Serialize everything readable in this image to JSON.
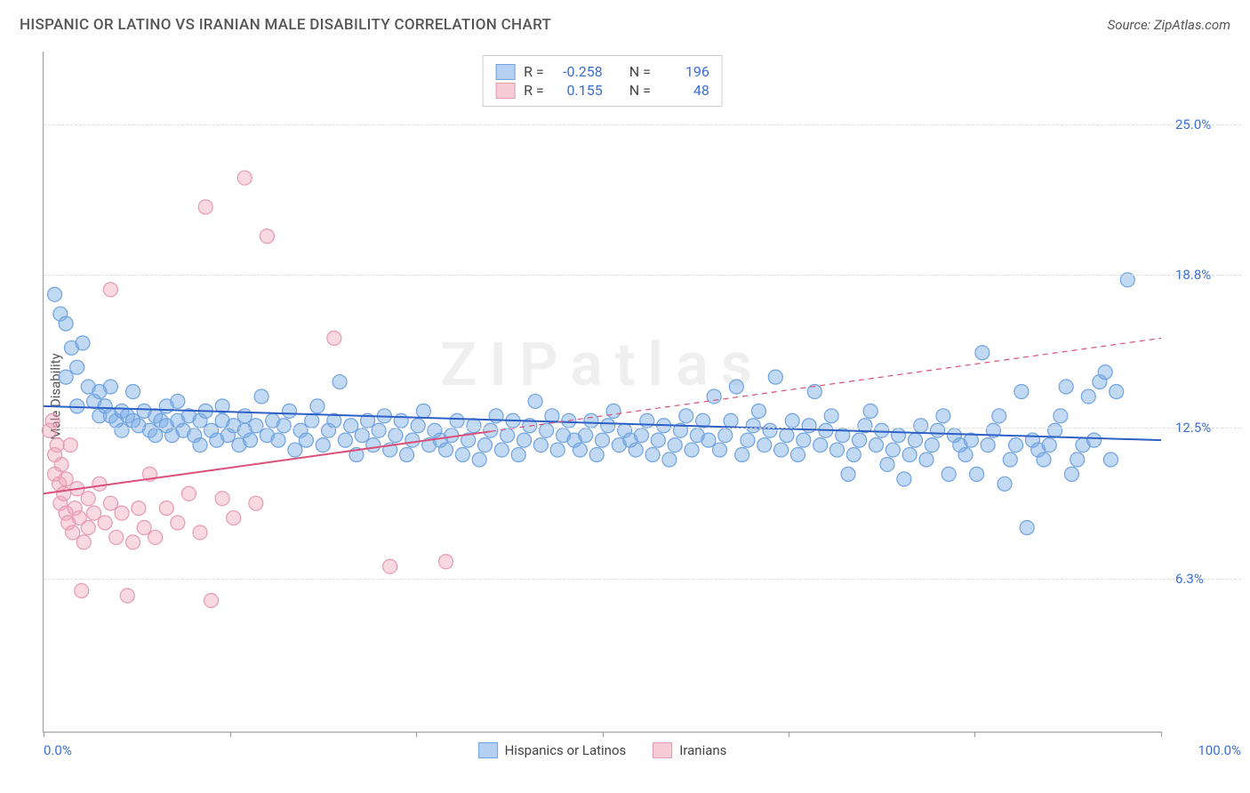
{
  "title": "HISPANIC OR LATINO VS IRANIAN MALE DISABILITY CORRELATION CHART",
  "source": "Source: ZipAtlas.com",
  "watermark": "ZIPatlas",
  "ylabel": "Male Disability",
  "chart": {
    "type": "scatter",
    "xlim": [
      0,
      100
    ],
    "ylim": [
      0,
      28
    ],
    "x_tick_label_min": "0.0%",
    "x_tick_label_max": "100.0%",
    "x_tick_positions": [
      0,
      16.67,
      33.33,
      50,
      66.67,
      83.33,
      100
    ],
    "y_gridlines": [
      {
        "v": 6.3,
        "label": "6.3%"
      },
      {
        "v": 12.5,
        "label": "12.5%"
      },
      {
        "v": 18.8,
        "label": "18.8%"
      },
      {
        "v": 25.0,
        "label": "25.0%"
      }
    ],
    "grid_color": "#dddddd",
    "background_color": "#ffffff",
    "axis_color": "#999999",
    "label_color": "#3b6fd6",
    "point_radius": 8,
    "point_stroke_width": 1.2,
    "line_width": 2,
    "series": [
      {
        "name": "Hispanics or Latinos",
        "fill": "rgba(120,170,230,0.45)",
        "stroke": "#6fa3e0",
        "trend_color": "#2d5fc4",
        "trend_dash_after_x": 100,
        "trend": {
          "x0": 0,
          "y0": 13.4,
          "x1": 100,
          "y1": 12.0
        },
        "stats": {
          "R_label": "R =",
          "R": "-0.258",
          "N_label": "N =",
          "N": "196"
        },
        "points": [
          [
            1,
            18.0
          ],
          [
            1.5,
            17.2
          ],
          [
            2,
            16.8
          ],
          [
            2,
            14.6
          ],
          [
            2.5,
            15.8
          ],
          [
            3,
            15.0
          ],
          [
            3,
            13.4
          ],
          [
            3.5,
            16.0
          ],
          [
            4,
            14.2
          ],
          [
            4.5,
            13.6
          ],
          [
            5,
            14.0
          ],
          [
            5,
            13.0
          ],
          [
            5.5,
            13.4
          ],
          [
            6,
            13.0
          ],
          [
            6,
            14.2
          ],
          [
            6.5,
            12.8
          ],
          [
            7,
            13.2
          ],
          [
            7,
            12.4
          ],
          [
            7.5,
            13.0
          ],
          [
            8,
            12.8
          ],
          [
            8,
            14.0
          ],
          [
            8.5,
            12.6
          ],
          [
            9,
            13.2
          ],
          [
            9.5,
            12.4
          ],
          [
            10,
            13.0
          ],
          [
            10,
            12.2
          ],
          [
            10.5,
            12.8
          ],
          [
            11,
            12.6
          ],
          [
            11,
            13.4
          ],
          [
            11.5,
            12.2
          ],
          [
            12,
            12.8
          ],
          [
            12,
            13.6
          ],
          [
            12.5,
            12.4
          ],
          [
            13,
            13.0
          ],
          [
            13.5,
            12.2
          ],
          [
            14,
            12.8
          ],
          [
            14,
            11.8
          ],
          [
            14.5,
            13.2
          ],
          [
            15,
            12.4
          ],
          [
            15.5,
            12.0
          ],
          [
            16,
            12.8
          ],
          [
            16,
            13.4
          ],
          [
            16.5,
            12.2
          ],
          [
            17,
            12.6
          ],
          [
            17.5,
            11.8
          ],
          [
            18,
            12.4
          ],
          [
            18,
            13.0
          ],
          [
            18.5,
            12.0
          ],
          [
            19,
            12.6
          ],
          [
            19.5,
            13.8
          ],
          [
            20,
            12.2
          ],
          [
            20.5,
            12.8
          ],
          [
            21,
            12.0
          ],
          [
            21.5,
            12.6
          ],
          [
            22,
            13.2
          ],
          [
            22.5,
            11.6
          ],
          [
            23,
            12.4
          ],
          [
            23.5,
            12.0
          ],
          [
            24,
            12.8
          ],
          [
            24.5,
            13.4
          ],
          [
            25,
            11.8
          ],
          [
            25.5,
            12.4
          ],
          [
            26,
            12.8
          ],
          [
            26.5,
            14.4
          ],
          [
            27,
            12.0
          ],
          [
            27.5,
            12.6
          ],
          [
            28,
            11.4
          ],
          [
            28.5,
            12.2
          ],
          [
            29,
            12.8
          ],
          [
            29.5,
            11.8
          ],
          [
            30,
            12.4
          ],
          [
            30.5,
            13.0
          ],
          [
            31,
            11.6
          ],
          [
            31.5,
            12.2
          ],
          [
            32,
            12.8
          ],
          [
            32.5,
            11.4
          ],
          [
            33,
            12.0
          ],
          [
            33.5,
            12.6
          ],
          [
            34,
            13.2
          ],
          [
            34.5,
            11.8
          ],
          [
            35,
            12.4
          ],
          [
            35.5,
            12.0
          ],
          [
            36,
            11.6
          ],
          [
            36.5,
            12.2
          ],
          [
            37,
            12.8
          ],
          [
            37.5,
            11.4
          ],
          [
            38,
            12.0
          ],
          [
            38.5,
            12.6
          ],
          [
            39,
            11.2
          ],
          [
            39.5,
            11.8
          ],
          [
            40,
            12.4
          ],
          [
            40.5,
            13.0
          ],
          [
            41,
            11.6
          ],
          [
            41.5,
            12.2
          ],
          [
            42,
            12.8
          ],
          [
            42.5,
            11.4
          ],
          [
            43,
            12.0
          ],
          [
            43.5,
            12.6
          ],
          [
            44,
            13.6
          ],
          [
            44.5,
            11.8
          ],
          [
            45,
            12.4
          ],
          [
            45.5,
            13.0
          ],
          [
            46,
            11.6
          ],
          [
            46.5,
            12.2
          ],
          [
            47,
            12.8
          ],
          [
            47.5,
            12.0
          ],
          [
            48,
            11.6
          ],
          [
            48.5,
            12.2
          ],
          [
            49,
            12.8
          ],
          [
            49.5,
            11.4
          ],
          [
            50,
            12.0
          ],
          [
            50.5,
            12.6
          ],
          [
            51,
            13.2
          ],
          [
            51.5,
            11.8
          ],
          [
            52,
            12.4
          ],
          [
            52.5,
            12.0
          ],
          [
            53,
            11.6
          ],
          [
            53.5,
            12.2
          ],
          [
            54,
            12.8
          ],
          [
            54.5,
            11.4
          ],
          [
            55,
            12.0
          ],
          [
            55.5,
            12.6
          ],
          [
            56,
            11.2
          ],
          [
            56.5,
            11.8
          ],
          [
            57,
            12.4
          ],
          [
            57.5,
            13.0
          ],
          [
            58,
            11.6
          ],
          [
            58.5,
            12.2
          ],
          [
            59,
            12.8
          ],
          [
            59.5,
            12.0
          ],
          [
            60,
            13.8
          ],
          [
            60.5,
            11.6
          ],
          [
            61,
            12.2
          ],
          [
            61.5,
            12.8
          ],
          [
            62,
            14.2
          ],
          [
            62.5,
            11.4
          ],
          [
            63,
            12.0
          ],
          [
            63.5,
            12.6
          ],
          [
            64,
            13.2
          ],
          [
            64.5,
            11.8
          ],
          [
            65,
            12.4
          ],
          [
            65.5,
            14.6
          ],
          [
            66,
            11.6
          ],
          [
            66.5,
            12.2
          ],
          [
            67,
            12.8
          ],
          [
            67.5,
            11.4
          ],
          [
            68,
            12.0
          ],
          [
            68.5,
            12.6
          ],
          [
            69,
            14.0
          ],
          [
            69.5,
            11.8
          ],
          [
            70,
            12.4
          ],
          [
            70.5,
            13.0
          ],
          [
            71,
            11.6
          ],
          [
            71.5,
            12.2
          ],
          [
            72,
            10.6
          ],
          [
            72.5,
            11.4
          ],
          [
            73,
            12.0
          ],
          [
            73.5,
            12.6
          ],
          [
            74,
            13.2
          ],
          [
            74.5,
            11.8
          ],
          [
            75,
            12.4
          ],
          [
            75.5,
            11.0
          ],
          [
            76,
            11.6
          ],
          [
            76.5,
            12.2
          ],
          [
            77,
            10.4
          ],
          [
            77.5,
            11.4
          ],
          [
            78,
            12.0
          ],
          [
            78.5,
            12.6
          ],
          [
            79,
            11.2
          ],
          [
            79.5,
            11.8
          ],
          [
            80,
            12.4
          ],
          [
            80.5,
            13.0
          ],
          [
            81,
            10.6
          ],
          [
            81.5,
            12.2
          ],
          [
            82,
            11.8
          ],
          [
            82.5,
            11.4
          ],
          [
            83,
            12.0
          ],
          [
            83.5,
            10.6
          ],
          [
            84,
            15.6
          ],
          [
            84.5,
            11.8
          ],
          [
            85,
            12.4
          ],
          [
            85.5,
            13.0
          ],
          [
            86,
            10.2
          ],
          [
            86.5,
            11.2
          ],
          [
            87,
            11.8
          ],
          [
            87.5,
            14.0
          ],
          [
            88,
            8.4
          ],
          [
            88.5,
            12.0
          ],
          [
            89,
            11.6
          ],
          [
            89.5,
            11.2
          ],
          [
            90,
            11.8
          ],
          [
            90.5,
            12.4
          ],
          [
            91,
            13.0
          ],
          [
            91.5,
            14.2
          ],
          [
            92,
            10.6
          ],
          [
            92.5,
            11.2
          ],
          [
            93,
            11.8
          ],
          [
            93.5,
            13.8
          ],
          [
            94,
            12.0
          ],
          [
            94.5,
            14.4
          ],
          [
            95,
            14.8
          ],
          [
            95.5,
            11.2
          ],
          [
            96,
            14.0
          ],
          [
            97,
            18.6
          ]
        ]
      },
      {
        "name": "Iranians",
        "fill": "rgba(240,160,180,0.40)",
        "stroke": "#e79ab0",
        "trend_color": "#d94f78",
        "trend_dash_after_x": 40,
        "trend": {
          "x0": 0,
          "y0": 9.8,
          "x1": 100,
          "y1": 16.2
        },
        "stats": {
          "R_label": "R =",
          "R": "0.155",
          "N_label": "N =",
          "N": "48"
        },
        "points": [
          [
            0.5,
            12.4
          ],
          [
            0.8,
            12.8
          ],
          [
            1,
            11.4
          ],
          [
            1,
            10.6
          ],
          [
            1.2,
            11.8
          ],
          [
            1.4,
            10.2
          ],
          [
            1.5,
            9.4
          ],
          [
            1.6,
            11.0
          ],
          [
            1.8,
            9.8
          ],
          [
            2,
            10.4
          ],
          [
            2,
            9.0
          ],
          [
            2.2,
            8.6
          ],
          [
            2.4,
            11.8
          ],
          [
            2.6,
            8.2
          ],
          [
            2.8,
            9.2
          ],
          [
            3,
            10.0
          ],
          [
            3.2,
            8.8
          ],
          [
            3.4,
            5.8
          ],
          [
            3.6,
            7.8
          ],
          [
            4,
            9.6
          ],
          [
            4,
            8.4
          ],
          [
            4.5,
            9.0
          ],
          [
            5,
            10.2
          ],
          [
            5.5,
            8.6
          ],
          [
            6,
            9.4
          ],
          [
            6,
            18.2
          ],
          [
            6.5,
            8.0
          ],
          [
            7,
            9.0
          ],
          [
            7.5,
            5.6
          ],
          [
            8,
            7.8
          ],
          [
            8.5,
            9.2
          ],
          [
            9,
            8.4
          ],
          [
            9.5,
            10.6
          ],
          [
            10,
            8.0
          ],
          [
            11,
            9.2
          ],
          [
            12,
            8.6
          ],
          [
            13,
            9.8
          ],
          [
            14,
            8.2
          ],
          [
            14.5,
            21.6
          ],
          [
            15,
            5.4
          ],
          [
            16,
            9.6
          ],
          [
            17,
            8.8
          ],
          [
            18,
            22.8
          ],
          [
            19,
            9.4
          ],
          [
            20,
            20.4
          ],
          [
            26,
            16.2
          ],
          [
            31,
            6.8
          ],
          [
            36,
            7.0
          ]
        ]
      }
    ]
  },
  "legend": {
    "items": [
      {
        "label": "Hispanics or Latinos",
        "fill": "rgba(120,170,230,0.55)",
        "stroke": "#6fa3e0"
      },
      {
        "label": "Iranians",
        "fill": "rgba(240,160,180,0.55)",
        "stroke": "#e79ab0"
      }
    ]
  }
}
